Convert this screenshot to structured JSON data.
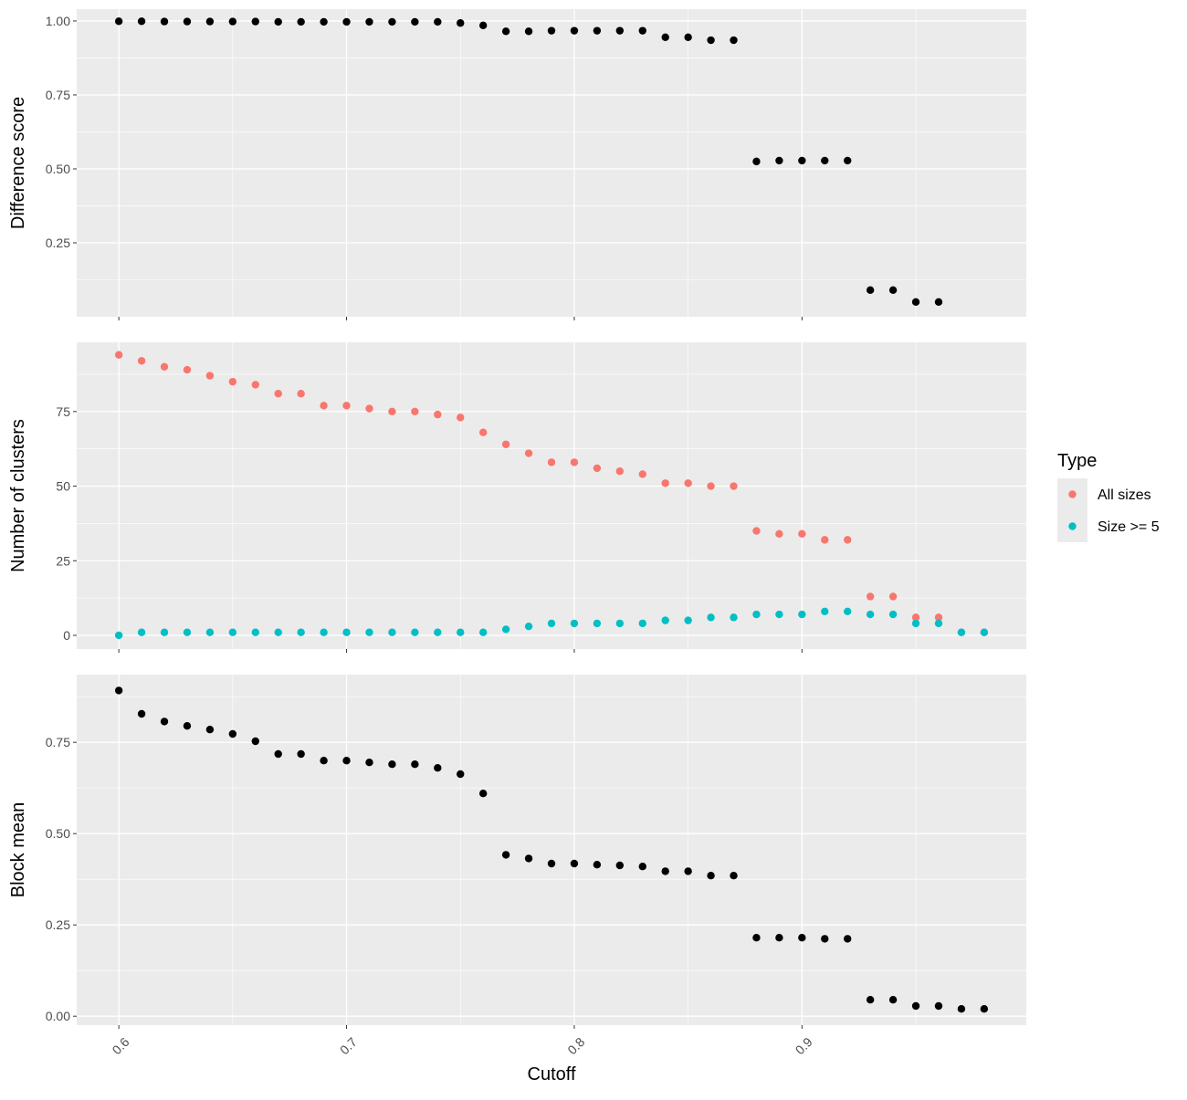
{
  "chart_data": {
    "type": "scatter",
    "x_label": "Cutoff",
    "x_ticks": [
      0.6,
      0.7,
      0.8,
      0.9
    ],
    "x_tick_labels": [
      "0.6",
      "0.7",
      "0.8",
      "0.9"
    ],
    "xlim": [
      0.5815,
      0.9985
    ],
    "grid": true,
    "legend": {
      "title": "Type",
      "position": "right",
      "entries": [
        {
          "label": "All sizes",
          "color": "#F8766D"
        },
        {
          "label": "Size >= 5",
          "color": "#00BFC4"
        }
      ]
    },
    "point_color": "#000000",
    "panels": [
      {
        "ylabel": "Difference score",
        "ylim": [
          0.0,
          1.04
        ],
        "y_ticks": [
          0.25,
          0.5,
          0.75,
          1.0
        ],
        "y_tick_labels": [
          "0.25",
          "0.50",
          "0.75",
          "1.00"
        ],
        "series": [
          {
            "color": "#000000",
            "x": [
              0.6,
              0.61,
              0.62,
              0.63,
              0.64,
              0.65,
              0.66,
              0.67,
              0.68,
              0.69,
              0.7,
              0.71,
              0.72,
              0.73,
              0.74,
              0.75,
              0.76,
              0.77,
              0.78,
              0.79,
              0.8,
              0.81,
              0.82,
              0.83,
              0.84,
              0.85,
              0.86,
              0.87,
              0.88,
              0.89,
              0.9,
              0.91,
              0.92,
              0.93,
              0.94,
              0.95,
              0.96
            ],
            "y": [
              0.999,
              0.999,
              0.998,
              0.998,
              0.998,
              0.998,
              0.998,
              0.997,
              0.997,
              0.997,
              0.997,
              0.997,
              0.997,
              0.997,
              0.997,
              0.993,
              0.985,
              0.965,
              0.965,
              0.967,
              0.967,
              0.967,
              0.967,
              0.967,
              0.945,
              0.945,
              0.935,
              0.935,
              0.525,
              0.528,
              0.528,
              0.528,
              0.528,
              0.09,
              0.09,
              0.05,
              0.05
            ]
          }
        ]
      },
      {
        "ylabel": "Number of clusters",
        "ylim": [
          -4.6,
          98.2
        ],
        "y_ticks": [
          0,
          25,
          50,
          75
        ],
        "y_tick_labels": [
          "0",
          "25",
          "50",
          "75"
        ],
        "series": [
          {
            "name": "All sizes",
            "color": "#F8766D",
            "x": [
              0.6,
              0.61,
              0.62,
              0.63,
              0.64,
              0.65,
              0.66,
              0.67,
              0.68,
              0.69,
              0.7,
              0.71,
              0.72,
              0.73,
              0.74,
              0.75,
              0.76,
              0.77,
              0.78,
              0.79,
              0.8,
              0.81,
              0.82,
              0.83,
              0.84,
              0.85,
              0.86,
              0.87,
              0.88,
              0.89,
              0.9,
              0.91,
              0.92,
              0.93,
              0.94,
              0.95,
              0.96,
              0.97,
              0.98
            ],
            "y": [
              94,
              92,
              90,
              89,
              87,
              85,
              84,
              81,
              81,
              77,
              77,
              76,
              75,
              75,
              74,
              73,
              68,
              64,
              61,
              58,
              58,
              56,
              55,
              54,
              51,
              51,
              50,
              50,
              35,
              34,
              34,
              32,
              32,
              13,
              13,
              6,
              6,
              1,
              1
            ]
          },
          {
            "name": "Size >= 5",
            "color": "#00BFC4",
            "x": [
              0.6,
              0.61,
              0.62,
              0.63,
              0.64,
              0.65,
              0.66,
              0.67,
              0.68,
              0.69,
              0.7,
              0.71,
              0.72,
              0.73,
              0.74,
              0.75,
              0.76,
              0.77,
              0.78,
              0.79,
              0.8,
              0.81,
              0.82,
              0.83,
              0.84,
              0.85,
              0.86,
              0.87,
              0.88,
              0.89,
              0.9,
              0.91,
              0.92,
              0.93,
              0.94,
              0.95,
              0.96,
              0.97,
              0.98
            ],
            "y": [
              0,
              1,
              1,
              1,
              1,
              1,
              1,
              1,
              1,
              1,
              1,
              1,
              1,
              1,
              1,
              1,
              1,
              2,
              3,
              4,
              4,
              4,
              4,
              4,
              5,
              5,
              6,
              6,
              7,
              7,
              7,
              8,
              8,
              7,
              7,
              4,
              4,
              1,
              1
            ]
          }
        ]
      },
      {
        "ylabel": "Block mean",
        "ylim": [
          -0.0245,
          0.9355
        ],
        "y_ticks": [
          0.0,
          0.25,
          0.5,
          0.75
        ],
        "y_tick_labels": [
          "0.00",
          "0.25",
          "0.50",
          "0.75"
        ],
        "series": [
          {
            "color": "#000000",
            "x": [
              0.6,
              0.61,
              0.62,
              0.63,
              0.64,
              0.65,
              0.66,
              0.67,
              0.68,
              0.69,
              0.7,
              0.71,
              0.72,
              0.73,
              0.74,
              0.75,
              0.76,
              0.77,
              0.78,
              0.79,
              0.8,
              0.81,
              0.82,
              0.83,
              0.84,
              0.85,
              0.86,
              0.87,
              0.88,
              0.89,
              0.9,
              0.91,
              0.92,
              0.93,
              0.94,
              0.95,
              0.96,
              0.97,
              0.98
            ],
            "y": [
              0.892,
              0.828,
              0.807,
              0.795,
              0.785,
              0.773,
              0.753,
              0.718,
              0.718,
              0.7,
              0.7,
              0.695,
              0.69,
              0.69,
              0.68,
              0.663,
              0.61,
              0.442,
              0.432,
              0.418,
              0.418,
              0.415,
              0.413,
              0.41,
              0.397,
              0.397,
              0.385,
              0.385,
              0.215,
              0.215,
              0.215,
              0.212,
              0.212,
              0.045,
              0.045,
              0.028,
              0.028,
              0.02,
              0.02
            ]
          }
        ]
      }
    ]
  }
}
